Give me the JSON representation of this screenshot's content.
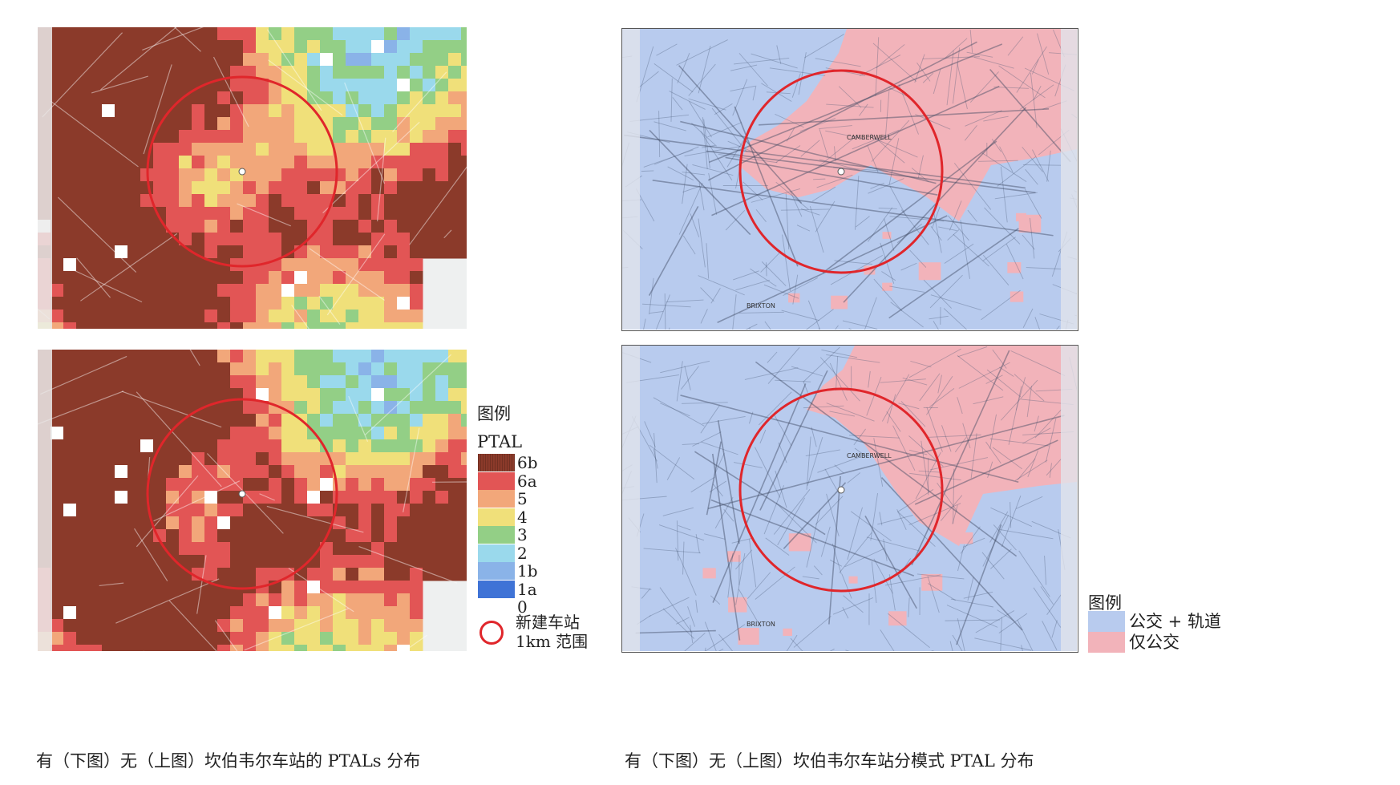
{
  "colors": {
    "6b": "#8b3a2a",
    "6a": "#e25555",
    "5": "#f2a77a",
    "4": "#f0e07a",
    "3": "#93cf86",
    "2": "#9ad9ec",
    "1b": "#8ab3e8",
    "1a": "#3f73d6",
    "0": "#ffffff",
    "bus_rail": "#b8cbee",
    "bus_only": "#f2b3ba",
    "station_range": "#e0262b"
  },
  "maps": {
    "left_top": {
      "icon": "ptal-grid-map-without-station"
    },
    "left_bottom": {
      "icon": "ptal-grid-map-with-station"
    },
    "right_top": {
      "place_labels": [
        "CAMBERWELL",
        "BRIXTON"
      ],
      "icon": "mode-map-without-station"
    },
    "right_bottom": {
      "place_labels": [
        "CAMBERWELL",
        "BRIXTON"
      ],
      "icon": "mode-map-with-station"
    }
  },
  "ptal_legend": {
    "title": "图例",
    "heading": "PTAL",
    "levels": [
      "6b",
      "6a",
      "5",
      "4",
      "3",
      "2",
      "1b",
      "1a",
      "0"
    ],
    "station_label_line1": "新建车站",
    "station_label_line2": "1km 范围"
  },
  "mode_legend": {
    "title": "图例",
    "items": [
      {
        "label": "公交 + 轨道",
        "color_key": "bus_rail"
      },
      {
        "label": "仅公交",
        "color_key": "bus_only"
      }
    ]
  },
  "captions": {
    "left": "有（下图）无（上图）坎伯韦尔车站的 PTALs 分布",
    "right": "有（下图）无（上图）坎伯韦尔车站分模式 PTAL 分布"
  }
}
